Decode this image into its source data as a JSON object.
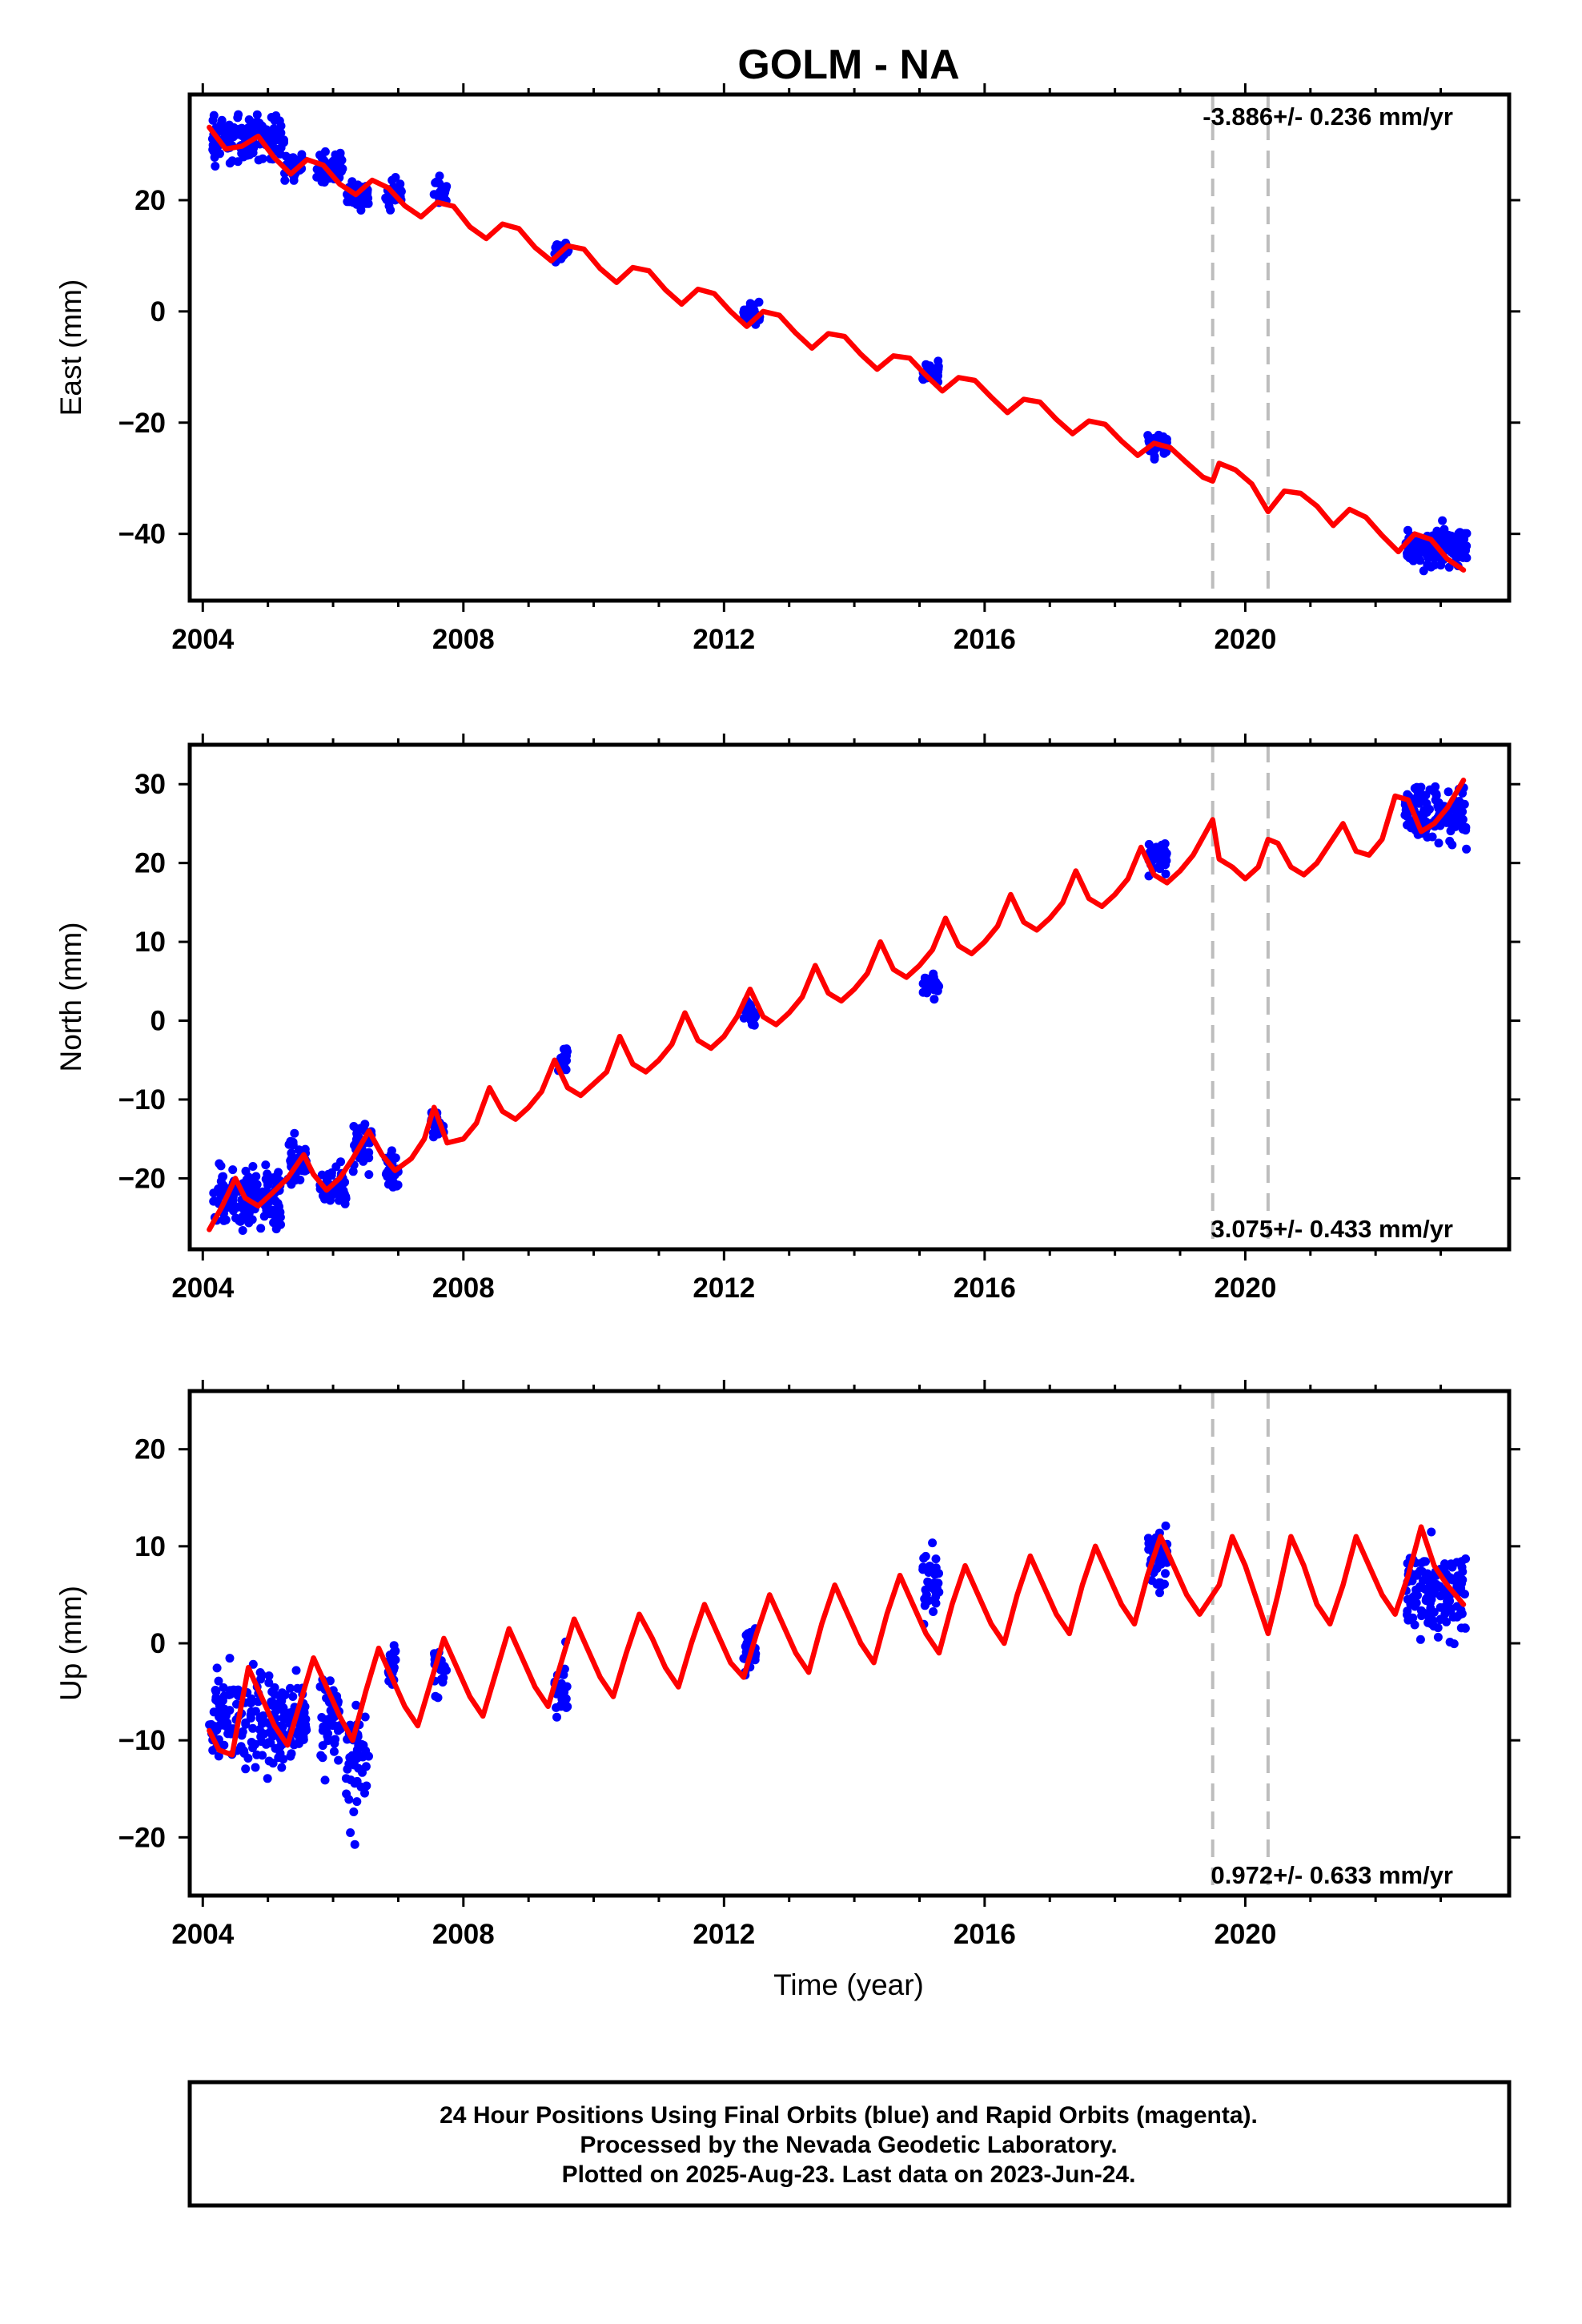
{
  "title": "GOLM - NA",
  "xlabel": "Time (year)",
  "x_tick_labels": [
    "2004",
    "2008",
    "2012",
    "2016",
    "2020"
  ],
  "footer": {
    "line1": "24 Hour Positions Using Final Orbits (blue) and Rapid Orbits (magenta).",
    "line2": "Processed by the Nevada Geodetic Laboratory.",
    "line3": "Plotted on 2025-Aug-23. Last data on 2023-Jun-24."
  },
  "colors": {
    "final_orbits": "#0000ff",
    "model_fit": "#ff0000",
    "event_line": "#bdbdbd",
    "frame": "#000000"
  },
  "chart_data": [
    {
      "type": "scatter",
      "ylabel": "East (mm)",
      "xlim": [
        2003.8,
        2024.05
      ],
      "ylim": [
        -52,
        39
      ],
      "x_ticks": [
        2004,
        2008,
        2012,
        2016,
        2020
      ],
      "y_ticks": [
        20,
        0,
        -20,
        -40
      ],
      "y_tick_labels": [
        "20",
        "0",
        "−20",
        "−40"
      ],
      "rate_label": "-3.886+/- 0.236 mm/yr",
      "rate_position": "top-right",
      "event_lines": [
        2019.5,
        2020.35
      ],
      "model": {
        "x": [
          2004.1,
          2004.35,
          2004.6,
          2004.85,
          2005.1,
          2005.35,
          2005.6,
          2005.85,
          2006.1,
          2006.35,
          2006.6,
          2006.85,
          2007.1,
          2007.35,
          2007.6,
          2007.85,
          2008.1,
          2008.35,
          2008.6,
          2008.85,
          2009.1,
          2009.35,
          2009.6,
          2009.85,
          2010.1,
          2010.35,
          2010.6,
          2010.85,
          2011.1,
          2011.35,
          2011.6,
          2011.85,
          2012.1,
          2012.35,
          2012.6,
          2012.85,
          2013.1,
          2013.35,
          2013.6,
          2013.85,
          2014.1,
          2014.35,
          2014.6,
          2014.85,
          2015.1,
          2015.35,
          2015.6,
          2015.85,
          2016.1,
          2016.35,
          2016.6,
          2016.85,
          2017.1,
          2017.35,
          2017.6,
          2017.85,
          2018.1,
          2018.35,
          2018.6,
          2018.85,
          2019.1,
          2019.35,
          2019.5,
          2019.6,
          2019.85,
          2020.1,
          2020.35,
          2020.6,
          2020.85,
          2021.1,
          2021.35,
          2021.6,
          2021.85,
          2022.1,
          2022.35,
          2022.6,
          2022.85,
          2023.1,
          2023.35
        ],
        "y": [
          33.1,
          29.2,
          29.7,
          31.5,
          27.6,
          24.7,
          27.3,
          26.3,
          22.9,
          21.0,
          23.6,
          22.2,
          19.0,
          17.0,
          19.6,
          18.9,
          15.2,
          13.1,
          15.7,
          14.9,
          11.5,
          9.1,
          11.8,
          11.2,
          7.7,
          5.2,
          7.9,
          7.3,
          3.9,
          1.3,
          4.0,
          3.2,
          0.0,
          -2.7,
          0.0,
          -0.7,
          -3.9,
          -6.6,
          -4.0,
          -4.5,
          -7.7,
          -10.4,
          -8.0,
          -8.4,
          -11.5,
          -14.3,
          -11.9,
          -12.4,
          -15.4,
          -18.2,
          -15.8,
          -16.3,
          -19.4,
          -22.0,
          -19.7,
          -20.3,
          -23.3,
          -25.9,
          -23.7,
          -24.5,
          -27.2,
          -29.8,
          -30.5,
          -27.3,
          -28.5,
          -31.0,
          -36.0,
          -32.3,
          -32.7,
          -35.0,
          -38.5,
          -35.6,
          -37.0,
          -40.3,
          -43.2,
          -40.0,
          -41.0,
          -44.5,
          -46.5
        ]
      },
      "observations": [
        {
          "span": [
            2004.15,
            2005.25
          ],
          "y": [
            31.0,
            4.5
          ]
        },
        {
          "span": [
            2005.25,
            2005.55
          ],
          "y": [
            26.0,
            3.0
          ]
        },
        {
          "span": [
            2005.75,
            2006.15
          ],
          "y": [
            25.5,
            3.5
          ]
        },
        {
          "span": [
            2006.2,
            2006.55
          ],
          "y": [
            21.0,
            2.5
          ]
        },
        {
          "span": [
            2006.8,
            2007.05
          ],
          "y": [
            21.0,
            3.0
          ]
        },
        {
          "span": [
            2007.55,
            2007.75
          ],
          "y": [
            21.5,
            3.0
          ]
        },
        {
          "span": [
            2009.4,
            2009.62
          ],
          "y": [
            10.8,
            2.0
          ]
        },
        {
          "span": [
            2012.3,
            2012.55
          ],
          "y": [
            -0.5,
            2.5
          ]
        },
        {
          "span": [
            2015.05,
            2015.3
          ],
          "y": [
            -10.8,
            2.0
          ]
        },
        {
          "span": [
            2018.5,
            2018.8
          ],
          "y": [
            -24.0,
            2.5
          ]
        },
        {
          "span": [
            2022.45,
            2023.4
          ],
          "y": [
            -42.5,
            4.5
          ]
        }
      ]
    },
    {
      "type": "scatter",
      "ylabel": "North (mm)",
      "xlim": [
        2003.8,
        2024.05
      ],
      "ylim": [
        -29,
        35
      ],
      "x_ticks": [
        2004,
        2008,
        2012,
        2016,
        2020
      ],
      "y_ticks": [
        30,
        20,
        10,
        0,
        -10,
        -20
      ],
      "y_tick_labels": [
        "30",
        "20",
        "10",
        "0",
        "−10",
        "−20"
      ],
      "rate_label": "3.075+/- 0.433 mm/yr",
      "rate_position": "bottom-right",
      "event_lines": [
        2019.5,
        2020.35
      ],
      "model": {
        "x": [
          2004.1,
          2004.3,
          2004.5,
          2004.65,
          2004.85,
          2005.05,
          2005.3,
          2005.55,
          2005.7,
          2005.9,
          2006.1,
          2006.3,
          2006.55,
          2006.75,
          2006.95,
          2007.2,
          2007.4,
          2007.55,
          2007.75,
          2008.0,
          2008.2,
          2008.4,
          2008.6,
          2008.8,
          2009.0,
          2009.2,
          2009.4,
          2009.6,
          2009.8,
          2010.0,
          2010.2,
          2010.4,
          2010.6,
          2010.8,
          2011.0,
          2011.2,
          2011.4,
          2011.6,
          2011.8,
          2012.0,
          2012.2,
          2012.4,
          2012.6,
          2012.8,
          2013.0,
          2013.2,
          2013.4,
          2013.6,
          2013.8,
          2014.0,
          2014.2,
          2014.4,
          2014.6,
          2014.8,
          2015.0,
          2015.2,
          2015.4,
          2015.6,
          2015.8,
          2016.0,
          2016.2,
          2016.4,
          2016.6,
          2016.8,
          2017.0,
          2017.2,
          2017.4,
          2017.6,
          2017.8,
          2018.0,
          2018.2,
          2018.4,
          2018.6,
          2018.8,
          2019.0,
          2019.2,
          2019.4,
          2019.5,
          2019.6,
          2019.8,
          2020.0,
          2020.2,
          2020.35,
          2020.5,
          2020.7,
          2020.9,
          2021.1,
          2021.3,
          2021.5,
          2021.7,
          2021.9,
          2022.1,
          2022.3,
          2022.5,
          2022.7,
          2022.9,
          2023.1,
          2023.35
        ],
        "y": [
          -26.5,
          -23.5,
          -20.0,
          -22.5,
          -23.5,
          -22.0,
          -20.0,
          -17.0,
          -19.5,
          -21.5,
          -20.0,
          -17.5,
          -14.0,
          -17.0,
          -19.0,
          -17.5,
          -15.0,
          -11.0,
          -15.5,
          -15.0,
          -13.0,
          -8.5,
          -11.5,
          -12.5,
          -11.0,
          -9.0,
          -5.0,
          -8.5,
          -9.5,
          -8.0,
          -6.5,
          -2.0,
          -5.5,
          -6.5,
          -5.0,
          -3.0,
          1.0,
          -2.5,
          -3.5,
          -2.0,
          0.5,
          4.0,
          0.5,
          -0.5,
          1.0,
          3.0,
          7.0,
          3.5,
          2.5,
          4.0,
          6.0,
          10.0,
          6.5,
          5.5,
          7.0,
          9.0,
          13.0,
          9.5,
          8.5,
          10.0,
          12.0,
          16.0,
          12.5,
          11.5,
          13.0,
          15.0,
          19.0,
          15.5,
          14.5,
          16.0,
          18.0,
          22.0,
          18.5,
          17.5,
          19.0,
          21.0,
          24.0,
          25.5,
          20.5,
          19.5,
          18.0,
          19.5,
          23.0,
          22.5,
          19.5,
          18.5,
          20.0,
          22.5,
          25.0,
          21.5,
          21.0,
          23.0,
          28.5,
          28.0,
          24.0,
          25.0,
          27.0,
          30.5
        ]
      },
      "observations": [
        {
          "span": [
            2004.15,
            2005.2
          ],
          "y": [
            -22.5,
            5.0
          ]
        },
        {
          "span": [
            2005.3,
            2005.6
          ],
          "y": [
            -18.0,
            4.0
          ]
        },
        {
          "span": [
            2005.8,
            2006.2
          ],
          "y": [
            -21.0,
            3.5
          ]
        },
        {
          "span": [
            2006.3,
            2006.6
          ],
          "y": [
            -15.5,
            4.0
          ]
        },
        {
          "span": [
            2006.8,
            2007.0
          ],
          "y": [
            -19.0,
            3.0
          ]
        },
        {
          "span": [
            2007.5,
            2007.7
          ],
          "y": [
            -13.0,
            2.5
          ]
        },
        {
          "span": [
            2009.45,
            2009.6
          ],
          "y": [
            -5.0,
            2.0
          ]
        },
        {
          "span": [
            2012.3,
            2012.5
          ],
          "y": [
            1.0,
            2.0
          ]
        },
        {
          "span": [
            2015.05,
            2015.3
          ],
          "y": [
            4.5,
            1.8
          ]
        },
        {
          "span": [
            2018.5,
            2018.8
          ],
          "y": [
            20.5,
            2.5
          ]
        },
        {
          "span": [
            2022.45,
            2023.4
          ],
          "y": [
            26.5,
            4.5
          ]
        }
      ]
    },
    {
      "type": "scatter",
      "ylabel": "Up (mm)",
      "xlim": [
        2003.8,
        2024.05
      ],
      "ylim": [
        -26,
        26
      ],
      "x_ticks": [
        2004,
        2008,
        2012,
        2016,
        2020
      ],
      "y_ticks": [
        20,
        10,
        0,
        -10,
        -20
      ],
      "y_tick_labels": [
        "20",
        "10",
        "0",
        "−10",
        "−20"
      ],
      "rate_label": "0.972+/- 0.633 mm/yr",
      "rate_position": "bottom-right",
      "event_lines": [
        2019.5,
        2020.35
      ],
      "model": {
        "x": [
          2004.1,
          2004.25,
          2004.45,
          2004.7,
          2004.9,
          2005.1,
          2005.3,
          2005.5,
          2005.7,
          2005.9,
          2006.1,
          2006.3,
          2006.5,
          2006.7,
          2006.9,
          2007.1,
          2007.3,
          2007.5,
          2007.7,
          2007.9,
          2008.1,
          2008.3,
          2008.5,
          2008.7,
          2008.9,
          2009.1,
          2009.3,
          2009.5,
          2009.7,
          2009.9,
          2010.1,
          2010.3,
          2010.5,
          2010.7,
          2010.9,
          2011.1,
          2011.3,
          2011.5,
          2011.7,
          2011.9,
          2012.1,
          2012.3,
          2012.5,
          2012.7,
          2012.9,
          2013.1,
          2013.3,
          2013.5,
          2013.7,
          2013.9,
          2014.1,
          2014.3,
          2014.5,
          2014.7,
          2014.9,
          2015.1,
          2015.3,
          2015.5,
          2015.7,
          2015.9,
          2016.1,
          2016.3,
          2016.5,
          2016.7,
          2016.9,
          2017.1,
          2017.3,
          2017.5,
          2017.7,
          2017.9,
          2018.1,
          2018.3,
          2018.5,
          2018.7,
          2018.9,
          2019.1,
          2019.3,
          2019.5,
          2019.6,
          2019.8,
          2020.0,
          2020.2,
          2020.35,
          2020.5,
          2020.7,
          2020.9,
          2021.1,
          2021.3,
          2021.5,
          2021.7,
          2021.9,
          2022.1,
          2022.3,
          2022.5,
          2022.7,
          2022.9,
          2023.1,
          2023.35
        ],
        "y": [
          -9.0,
          -11.0,
          -11.5,
          -2.5,
          -5.5,
          -8.5,
          -10.5,
          -6.0,
          -1.5,
          -4.5,
          -7.5,
          -10.0,
          -5.0,
          -0.5,
          -3.5,
          -6.5,
          -8.5,
          -4.0,
          0.5,
          -2.5,
          -5.5,
          -7.5,
          -3.0,
          1.5,
          -1.5,
          -4.5,
          -6.5,
          -2.0,
          2.5,
          -0.5,
          -3.5,
          -5.5,
          -1.0,
          3.0,
          0.5,
          -2.5,
          -4.5,
          0.0,
          4.0,
          1.0,
          -2.0,
          -3.5,
          1.0,
          5.0,
          2.0,
          -1.0,
          -3.0,
          2.0,
          6.0,
          3.0,
          0.0,
          -2.0,
          3.0,
          7.0,
          4.0,
          1.0,
          -1.0,
          4.0,
          8.0,
          5.0,
          2.0,
          0.0,
          5.0,
          9.0,
          6.0,
          3.0,
          1.0,
          6.0,
          10.0,
          7.0,
          4.0,
          2.0,
          7.0,
          11.0,
          8.0,
          5.0,
          3.0,
          5.0,
          6.0,
          11.0,
          8.0,
          4.0,
          1.0,
          5.0,
          11.0,
          8.0,
          4.0,
          2.0,
          6.0,
          11.0,
          8.0,
          5.0,
          3.0,
          7.0,
          12.0,
          8.0,
          6.0,
          4.0
        ]
      },
      "observations": [
        {
          "span": [
            2004.1,
            2005.25
          ],
          "y": [
            -8.0,
            6.5
          ]
        },
        {
          "span": [
            2005.25,
            2005.6
          ],
          "y": [
            -7.5,
            6.0
          ]
        },
        {
          "span": [
            2005.8,
            2006.15
          ],
          "y": [
            -8.0,
            6.5
          ]
        },
        {
          "span": [
            2006.2,
            2006.55
          ],
          "y": [
            -12.0,
            7.0
          ]
        },
        {
          "span": [
            2006.85,
            2007.0
          ],
          "y": [
            -2.0,
            3.0
          ]
        },
        {
          "span": [
            2007.55,
            2007.75
          ],
          "y": [
            -2.5,
            4.0
          ]
        },
        {
          "span": [
            2009.4,
            2009.6
          ],
          "y": [
            -4.0,
            4.5
          ]
        },
        {
          "span": [
            2012.3,
            2012.5
          ],
          "y": [
            -1.0,
            3.5
          ]
        },
        {
          "span": [
            2015.05,
            2015.3
          ],
          "y": [
            6.0,
            5.0
          ]
        },
        {
          "span": [
            2018.5,
            2018.8
          ],
          "y": [
            8.5,
            4.0
          ]
        },
        {
          "span": [
            2022.45,
            2023.4
          ],
          "y": [
            5.5,
            6.0
          ]
        }
      ]
    }
  ]
}
